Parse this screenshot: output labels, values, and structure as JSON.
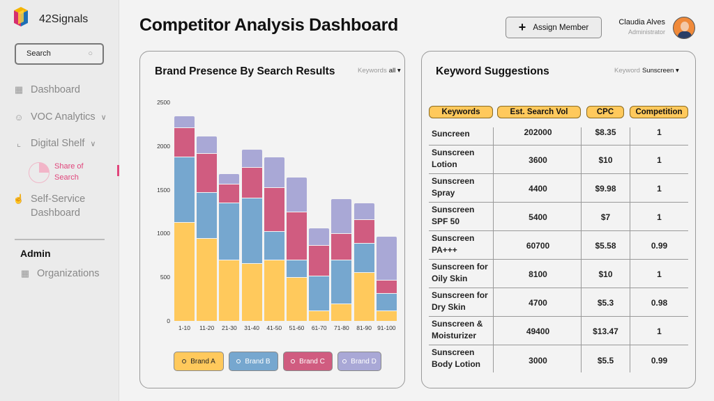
{
  "sidebar": {
    "brand": "42Signals",
    "logo_text": "42SIGNALS",
    "search_placeholder": "Search",
    "items": [
      {
        "label": "Dashboard",
        "icon": "grid-icon"
      },
      {
        "label": "VOC Analytics",
        "icon": "users-icon"
      },
      {
        "label": "Digital Shelf",
        "icon": "chart-line-icon"
      },
      {
        "label": "Self-Service Dashboard",
        "icon": "hand-icon"
      }
    ],
    "sub_item": "Share of Search",
    "admin_heading": "Admin",
    "admin_items": [
      {
        "label": "Organizations",
        "icon": "grid-icon"
      }
    ]
  },
  "header": {
    "title": "Competitor Analysis Dashboard",
    "assign_label": "Assign Member",
    "user_name": "Claudia Alves",
    "user_role": "Administrator"
  },
  "brand_card": {
    "title": "Brand Presence By Search Results",
    "filter_label": "Keywords",
    "filter_value": "all ▾"
  },
  "chart_data": {
    "type": "bar",
    "stacked": true,
    "title": "Brand Presence By Search Results",
    "xlabel": "",
    "ylabel": "",
    "ylim": [
      0,
      2500
    ],
    "yticks": [
      0,
      500,
      1000,
      1500,
      2000,
      2500
    ],
    "categories": [
      "1-10",
      "11-20",
      "21-30",
      "31-40",
      "41-50",
      "51-60",
      "61-70",
      "71-80",
      "81-90",
      "91-100"
    ],
    "legend": "bottom",
    "series": [
      {
        "name": "Brand A",
        "color": "#ffc95c",
        "values": [
          1130,
          950,
          700,
          660,
          700,
          500,
          120,
          200,
          560,
          120
        ]
      },
      {
        "name": "Brand B",
        "color": "#76a7cf",
        "values": [
          750,
          520,
          650,
          750,
          330,
          200,
          400,
          500,
          330,
          200
        ]
      },
      {
        "name": "Brand C",
        "color": "#d05c80",
        "values": [
          330,
          445,
          220,
          350,
          500,
          550,
          350,
          300,
          270,
          150
        ]
      },
      {
        "name": "Brand D",
        "color": "#a9a8d6",
        "values": [
          140,
          200,
          120,
          210,
          350,
          400,
          200,
          400,
          190,
          500
        ]
      }
    ]
  },
  "keyword_card": {
    "title": "Keyword Suggestions",
    "filter_label": "Keyword",
    "filter_value": "Sunscreen ▾",
    "columns": [
      "Keywords",
      "Est. Search Vol",
      "CPC",
      "Competition"
    ],
    "rows": [
      [
        "Suncreen",
        "202000",
        "$8.35",
        "1"
      ],
      [
        "Sunscreen Lotion",
        "3600",
        "$10",
        "1"
      ],
      [
        "Sunscreen Spray",
        "4400",
        "$9.98",
        "1"
      ],
      [
        "Sunscreen SPF 50",
        "5400",
        "$7",
        "1"
      ],
      [
        "Sunscreen PA+++",
        "60700",
        "$5.58",
        "0.99"
      ],
      [
        "Sunscreen for Oily Skin",
        "8100",
        "$10",
        "1"
      ],
      [
        "Sunscreen for Dry Skin",
        "4700",
        "$5.3",
        "0.98"
      ],
      [
        "Sunscreen & Moisturizer",
        "49400",
        "$13.47",
        "1"
      ],
      [
        "Sunscreen Body Lotion",
        "3000",
        "$5.5",
        "0.99"
      ]
    ]
  }
}
